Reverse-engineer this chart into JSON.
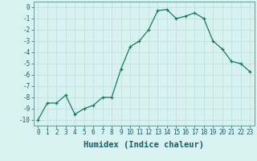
{
  "x": [
    0,
    1,
    2,
    3,
    4,
    5,
    6,
    7,
    8,
    9,
    10,
    11,
    12,
    13,
    14,
    15,
    16,
    17,
    18,
    19,
    20,
    21,
    22,
    23
  ],
  "y": [
    -10,
    -8.5,
    -8.5,
    -7.8,
    -9.5,
    -9.0,
    -8.7,
    -8.0,
    -8.0,
    -5.5,
    -3.5,
    -3.0,
    -2.0,
    -0.3,
    -0.2,
    -1.0,
    -0.8,
    -0.5,
    -1.0,
    -3.0,
    -3.7,
    -4.8,
    -5.0,
    -5.7
  ],
  "line_color": "#1a7a5e",
  "marker": "+",
  "marker_size": 3,
  "bg_color": "#d8f2f2",
  "grid_color": "#b8dede",
  "xlabel": "Humidex (Indice chaleur)",
  "ylim": [
    -10.5,
    0.5
  ],
  "xlim": [
    -0.5,
    23.5
  ],
  "yticks": [
    0,
    -1,
    -2,
    -3,
    -4,
    -5,
    -6,
    -7,
    -8,
    -9,
    -10
  ],
  "xticks": [
    0,
    1,
    2,
    3,
    4,
    5,
    6,
    7,
    8,
    9,
    10,
    11,
    12,
    13,
    14,
    15,
    16,
    17,
    18,
    19,
    20,
    21,
    22,
    23
  ],
  "tick_fontsize": 5.5,
  "xlabel_fontsize": 7.5,
  "label_color": "#1a5a6a",
  "spine_color": "#6a9a9a"
}
